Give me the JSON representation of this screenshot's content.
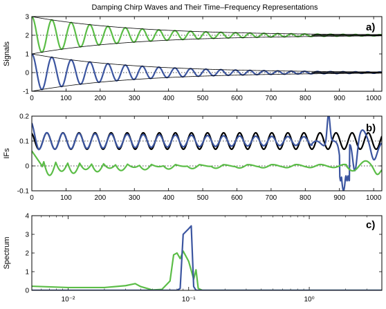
{
  "figure": {
    "title": "Damping Chirp Waves and Their Time–Frequency Representations"
  },
  "colors": {
    "green": "#5BBD47",
    "blue": "#3B55A0",
    "black": "#000000"
  },
  "chart_data": [
    {
      "panel": "a)",
      "type": "line",
      "ylabel": "Signals",
      "xlim": [
        0,
        1024
      ],
      "ylim": [
        -1,
        3
      ],
      "xticks": [
        0,
        100,
        200,
        300,
        400,
        500,
        600,
        700,
        800,
        900,
        1000
      ],
      "yticks": [
        -1,
        0,
        1,
        2,
        3
      ],
      "reference_lines": [
        0,
        2
      ],
      "series": [
        {
          "color": "green",
          "kind": "damped_chirp",
          "offset": 2,
          "amp0": 1.0,
          "decay_scale": 300,
          "period_start": 60,
          "period_end": 35
        },
        {
          "color": "black",
          "kind": "envelope_upper",
          "offset": 2,
          "amp0": 1.0,
          "decay_scale": 300
        },
        {
          "color": "black",
          "kind": "envelope_lower",
          "offset": 2,
          "amp0": 1.0,
          "decay_scale": 300
        },
        {
          "color": "blue",
          "kind": "damped_chirp",
          "offset": 0,
          "amp0": 1.0,
          "decay_scale": 300,
          "period_start": 60,
          "period_end": 35
        },
        {
          "color": "black",
          "kind": "envelope_upper",
          "offset": 0,
          "amp0": 1.0,
          "decay_scale": 300
        },
        {
          "color": "black",
          "kind": "envelope_lower",
          "offset": 0,
          "amp0": 1.0,
          "decay_scale": 300
        },
        {
          "color": "black",
          "kind": "flat_line",
          "offset": 0,
          "x_from": 820
        },
        {
          "color": "black",
          "kind": "flat_line",
          "offset": 2,
          "x_from": 820
        }
      ]
    },
    {
      "panel": "b)",
      "type": "line",
      "ylabel": "IFs",
      "xlim": [
        0,
        1024
      ],
      "ylim": [
        -0.1,
        0.2
      ],
      "xticks": [
        0,
        100,
        200,
        300,
        400,
        500,
        600,
        700,
        800,
        900,
        1000
      ],
      "yticks": [
        -0.1,
        0,
        0.1,
        0.2
      ],
      "reference_lines": [
        0,
        0.1
      ],
      "series": [
        {
          "color": "black",
          "kind": "ifs_black"
        },
        {
          "color": "blue",
          "kind": "ifs_blue"
        },
        {
          "color": "green",
          "kind": "ifs_green"
        }
      ]
    },
    {
      "panel": "c)",
      "type": "line",
      "ylabel": "Spectrum",
      "xscale": "log",
      "xlim": [
        0.005,
        4
      ],
      "ylim": [
        0,
        4
      ],
      "xtick_labels": [
        "10⁻²",
        "10⁻¹",
        "10⁰"
      ],
      "yticks": [
        0,
        1,
        2,
        3,
        4
      ],
      "series": [
        {
          "color": "green",
          "points": [
            [
              0.005,
              0.22
            ],
            [
              0.01,
              0.15
            ],
            [
              0.02,
              0.15
            ],
            [
              0.03,
              0.25
            ],
            [
              0.036,
              0.36
            ],
            [
              0.04,
              0.2
            ],
            [
              0.05,
              0.02
            ],
            [
              0.06,
              0.05
            ],
            [
              0.07,
              0.5
            ],
            [
              0.075,
              1.9
            ],
            [
              0.08,
              2.0
            ],
            [
              0.085,
              1.7
            ],
            [
              0.09,
              2.1
            ],
            [
              0.1,
              1.55
            ],
            [
              0.11,
              0.6
            ],
            [
              0.115,
              1.1
            ],
            [
              0.12,
              0.1
            ],
            [
              0.13,
              0.0
            ],
            [
              4,
              0.0
            ]
          ]
        },
        {
          "color": "blue",
          "points": [
            [
              0.005,
              0.0
            ],
            [
              0.08,
              0.0
            ],
            [
              0.085,
              0.1
            ],
            [
              0.09,
              3.0
            ],
            [
              0.1,
              3.3
            ],
            [
              0.105,
              3.45
            ],
            [
              0.11,
              0.2
            ],
            [
              0.115,
              0.0
            ],
            [
              4,
              0.0
            ]
          ]
        }
      ]
    }
  ]
}
